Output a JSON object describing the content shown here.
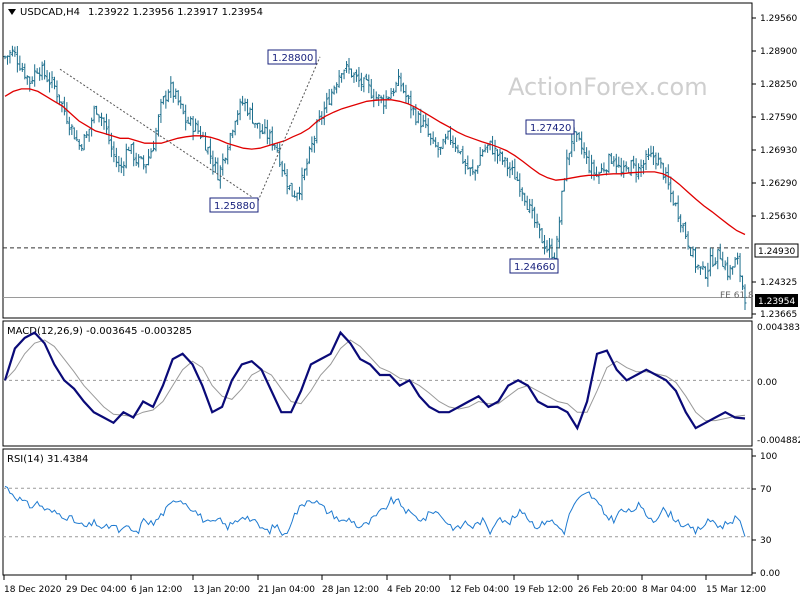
{
  "header": {
    "symbol": "USDCAD,H4",
    "ohlc": "1.23922 1.23956 1.23917 1.23954",
    "watermark": "ActionForex.com"
  },
  "chart_data": [
    {
      "type": "candlestick",
      "panel": "price",
      "title": "USDCAD,H4 1.23922 1.23956 1.23917 1.23954",
      "ylim": [
        1.2355,
        1.2985
      ],
      "y_ticks": [
        "1.29560",
        "1.28900",
        "1.28250",
        "1.27590",
        "1.26930",
        "1.26290",
        "1.25630",
        "1.24930",
        "1.24325",
        "1.23954",
        "1.23665"
      ],
      "x_ticks": [
        "18 Dec 2020",
        "29 Dec 04:00",
        "6 Jan 12:00",
        "13 Jan 20:00",
        "21 Jan 04:00",
        "28 Jan 12:00",
        "4 Feb 20:00",
        "12 Feb 04:00",
        "19 Feb 12:00",
        "26 Feb 20:00",
        "8 Mar 04:00",
        "15 Mar 12:00"
      ],
      "current_price": "1.23954",
      "horizontal_level": "1.24930",
      "fe_label": "FE 61.8",
      "annotations": [
        "1.28800",
        "1.25880",
        "1.27420",
        "1.24660"
      ],
      "close_path": [
        1.288,
        1.289,
        1.286,
        1.283,
        1.286,
        1.284,
        1.282,
        1.278,
        1.274,
        1.27,
        1.272,
        1.278,
        1.275,
        1.269,
        1.265,
        1.27,
        1.267,
        1.266,
        1.27,
        1.278,
        1.282,
        1.279,
        1.275,
        1.274,
        1.272,
        1.268,
        1.264,
        1.27,
        1.276,
        1.279,
        1.276,
        1.273,
        1.272,
        1.27,
        1.264,
        1.26,
        1.262,
        1.268,
        1.274,
        1.278,
        1.282,
        1.286,
        1.285,
        1.283,
        1.282,
        1.28,
        1.279,
        1.281,
        1.283,
        1.279,
        1.276,
        1.274,
        1.27,
        1.269,
        1.272,
        1.27,
        1.266,
        1.264,
        1.269,
        1.27,
        1.268,
        1.266,
        1.264,
        1.261,
        1.256,
        1.252,
        1.249,
        1.248,
        1.264,
        1.272,
        1.27,
        1.266,
        1.264,
        1.266,
        1.268,
        1.264,
        1.266,
        1.265,
        1.267,
        1.268,
        1.265,
        1.26,
        1.256,
        1.251,
        1.246,
        1.244,
        1.247,
        1.248,
        1.244,
        1.247,
        1.2395
      ],
      "ma_path": [
        1.28,
        1.281,
        1.2815,
        1.2815,
        1.281,
        1.28,
        1.279,
        1.278,
        1.2765,
        1.275,
        1.274,
        1.273,
        1.2725,
        1.272,
        1.2715,
        1.2715,
        1.271,
        1.2705,
        1.2705,
        1.2705,
        1.271,
        1.2715,
        1.2718,
        1.272,
        1.272,
        1.2717,
        1.2712,
        1.2705,
        1.27,
        1.2695,
        1.2693,
        1.2695,
        1.27,
        1.2705,
        1.271,
        1.2718,
        1.2725,
        1.2735,
        1.275,
        1.276,
        1.2768,
        1.2775,
        1.278,
        1.2785,
        1.279,
        1.2792,
        1.2793,
        1.2793,
        1.279,
        1.2785,
        1.2777,
        1.2767,
        1.2757,
        1.2747,
        1.2738,
        1.2728,
        1.272,
        1.2714,
        1.2708,
        1.2703,
        1.2697,
        1.269,
        1.268,
        1.2668,
        1.2655,
        1.2643,
        1.2635,
        1.263,
        1.2632,
        1.2635,
        1.2638,
        1.264,
        1.264,
        1.2642,
        1.2643,
        1.2643,
        1.2645,
        1.2646,
        1.2647,
        1.2647,
        1.2643,
        1.2635,
        1.2622,
        1.2607,
        1.2592,
        1.2578,
        1.2566,
        1.2553,
        1.254,
        1.2528,
        1.252
      ]
    },
    {
      "type": "line",
      "panel": "macd",
      "title": "MACD(12,26,9) -0.003645 -0.003285",
      "ylim": [
        -0.006,
        0.0054
      ],
      "y_ticks": [
        "0.004383",
        "0.00",
        "-0.004882"
      ],
      "macd_path": [
        0.0,
        0.003,
        0.004,
        0.0045,
        0.0035,
        0.0015,
        0.0,
        -0.0008,
        -0.002,
        -0.003,
        -0.0035,
        -0.004,
        -0.003,
        -0.0035,
        -0.002,
        -0.0025,
        -0.0005,
        0.002,
        0.0025,
        0.0015,
        -0.0005,
        -0.003,
        -0.0025,
        0.0,
        0.0015,
        0.0018,
        0.001,
        -0.001,
        -0.003,
        -0.003,
        -0.001,
        0.0015,
        0.002,
        0.0025,
        0.0045,
        0.0035,
        0.002,
        0.0015,
        0.0005,
        0.0005,
        -0.0005,
        0.0,
        -0.0015,
        -0.0025,
        -0.003,
        -0.003,
        -0.0025,
        -0.002,
        -0.0015,
        -0.0025,
        -0.002,
        -0.0005,
        0.0,
        -0.0005,
        -0.002,
        -0.0025,
        -0.0025,
        -0.003,
        -0.0045,
        -0.002,
        0.0025,
        0.0028,
        0.001,
        0.0,
        0.0005,
        0.001,
        0.0005,
        0.0,
        -0.001,
        -0.003,
        -0.0045,
        -0.004,
        -0.0035,
        -0.003,
        -0.0035,
        -0.0036
      ],
      "signal_path": [
        0.0,
        0.001,
        0.0025,
        0.0035,
        0.0038,
        0.0032,
        0.002,
        0.0008,
        -0.0005,
        -0.0015,
        -0.0025,
        -0.0032,
        -0.0033,
        -0.0034,
        -0.003,
        -0.0028,
        -0.002,
        -0.0005,
        0.001,
        0.0018,
        0.0012,
        -0.0005,
        -0.0015,
        -0.0018,
        -0.0008,
        0.0005,
        0.001,
        0.0005,
        -0.0008,
        -0.002,
        -0.0022,
        -0.001,
        0.0005,
        0.0015,
        0.003,
        0.0038,
        0.0032,
        0.0022,
        0.0012,
        0.0008,
        0.0002,
        0.0,
        -0.0005,
        -0.0012,
        -0.002,
        -0.0025,
        -0.0027,
        -0.0025,
        -0.002,
        -0.0022,
        -0.0022,
        -0.0015,
        -0.0008,
        -0.0005,
        -0.001,
        -0.0015,
        -0.002,
        -0.0022,
        -0.003,
        -0.003,
        -0.001,
        0.0012,
        0.0018,
        0.0012,
        0.0008,
        0.0008,
        0.0006,
        0.0004,
        -0.0002,
        -0.0015,
        -0.003,
        -0.0038,
        -0.0038,
        -0.0036,
        -0.0034,
        -0.0033
      ]
    },
    {
      "type": "line",
      "panel": "rsi",
      "title": "RSI(14) 31.4384",
      "ylim": [
        0,
        100
      ],
      "y_ticks": [
        "100",
        "70",
        "30",
        "0.00"
      ],
      "levels": [
        70,
        30
      ],
      "rsi_path": [
        72,
        65,
        60,
        55,
        58,
        52,
        50,
        48,
        45,
        40,
        38,
        42,
        36,
        40,
        34,
        38,
        32,
        45,
        40,
        48,
        55,
        62,
        58,
        52,
        45,
        40,
        44,
        38,
        42,
        48,
        44,
        38,
        34,
        40,
        30,
        46,
        55,
        62,
        58,
        52,
        48,
        42,
        45,
        38,
        40,
        46,
        52,
        60,
        58,
        50,
        46,
        44,
        52,
        48,
        40,
        36,
        42,
        38,
        44,
        34,
        48,
        40,
        46,
        52,
        42,
        38,
        45,
        40,
        34,
        55,
        62,
        66,
        58,
        48,
        44,
        52,
        50,
        56,
        48,
        44,
        52,
        48,
        42,
        38,
        34,
        40,
        44,
        38,
        42,
        46,
        31
      ]
    }
  ],
  "colors": {
    "bars": "#1c6e8c",
    "ma": "#e00000",
    "macd": "#0a0a78",
    "signal": "#9a9a9a",
    "rsi": "#1e7ad0",
    "grid_dash": "#9a9a9a",
    "annotation_border": "#1a237e"
  }
}
